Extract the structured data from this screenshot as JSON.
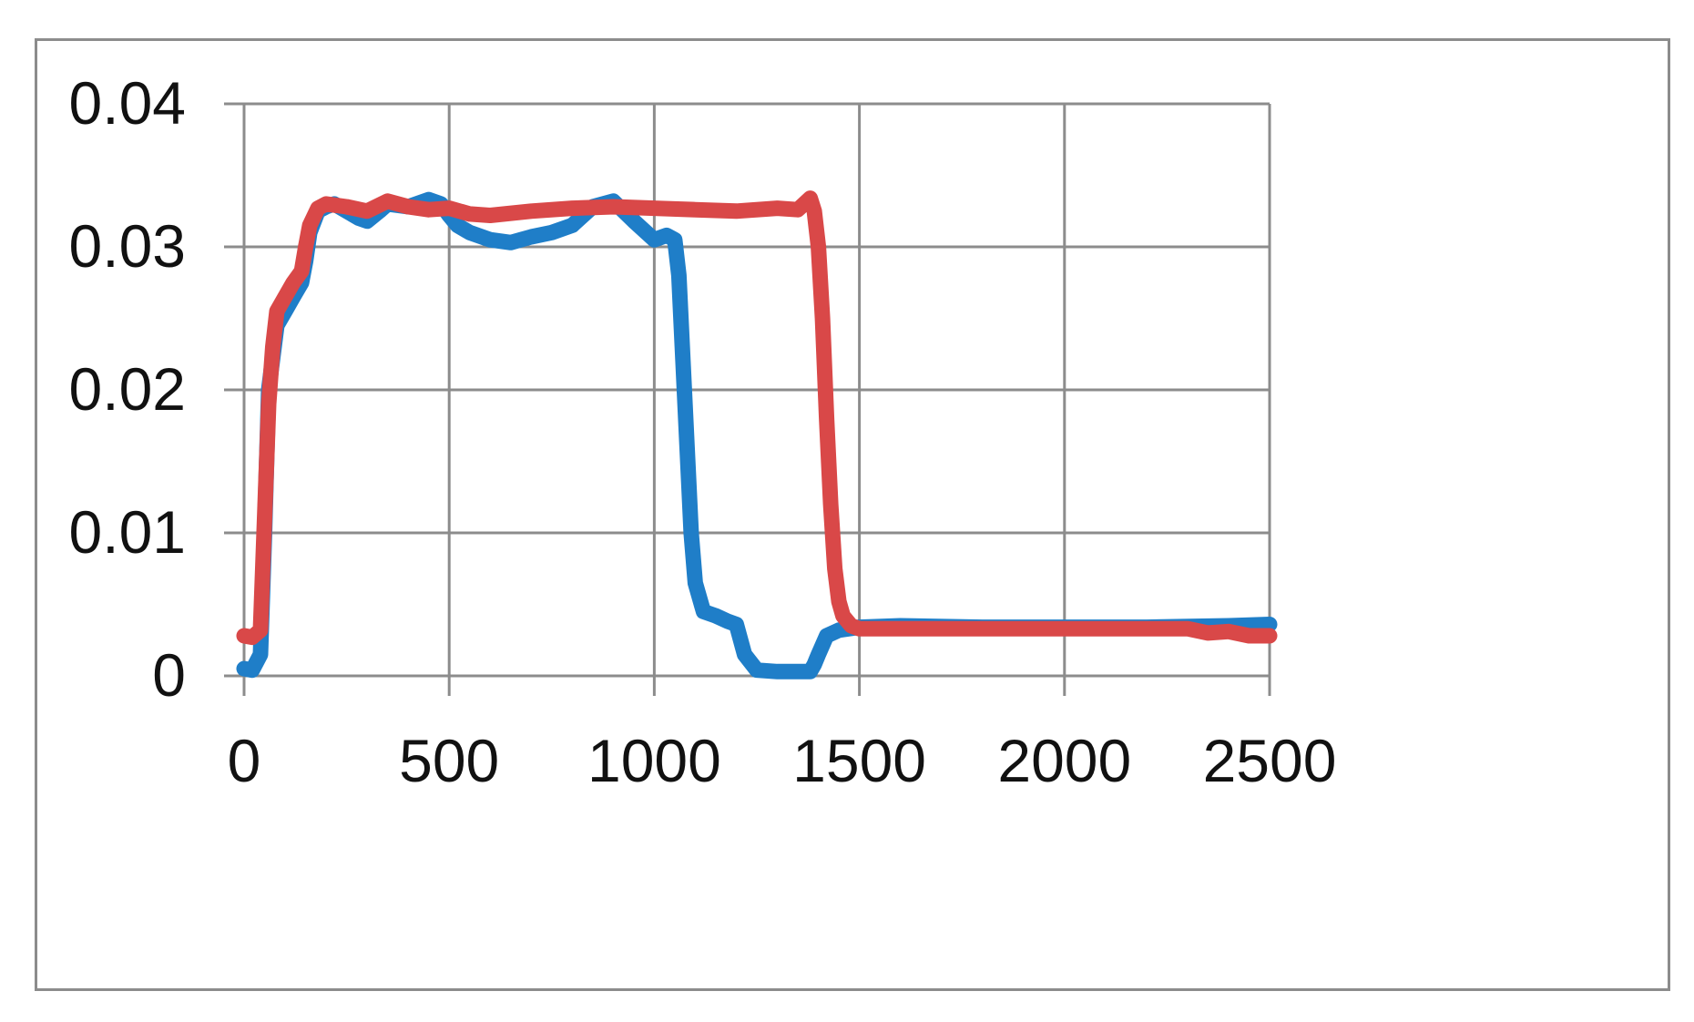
{
  "chart_data": {
    "type": "line",
    "title": "",
    "xlabel": "",
    "ylabel": "",
    "xlim": [
      0,
      2500
    ],
    "ylim": [
      0,
      0.04
    ],
    "x_ticks": [
      0,
      500,
      1000,
      1500,
      2000,
      2500
    ],
    "y_ticks": [
      0,
      0.01,
      0.02,
      0.03,
      0.04
    ],
    "x_tick_labels": [
      "0",
      "500",
      "1000",
      "1500",
      "2000",
      "2500"
    ],
    "y_tick_labels": [
      "0",
      "0.01",
      "0.02",
      "0.03",
      "0.04"
    ],
    "grid": true,
    "legend": "none",
    "series": [
      {
        "color": "#1f7ec8",
        "x": [
          0,
          20,
          40,
          50,
          60,
          80,
          100,
          120,
          140,
          150,
          160,
          180,
          200,
          220,
          250,
          280,
          300,
          330,
          350,
          400,
          450,
          480,
          500,
          520,
          550,
          600,
          650,
          700,
          750,
          800,
          850,
          900,
          950,
          1000,
          1030,
          1050,
          1060,
          1070,
          1080,
          1090,
          1100,
          1120,
          1150,
          1180,
          1200,
          1220,
          1250,
          1300,
          1350,
          1380,
          1390,
          1400,
          1420,
          1450,
          1500,
          1600,
          1800,
          2000,
          2200,
          2400,
          2500
        ],
        "y": [
          0.0005,
          0.0004,
          0.0015,
          0.01,
          0.02,
          0.0245,
          0.0255,
          0.0265,
          0.0275,
          0.029,
          0.031,
          0.0325,
          0.0328,
          0.033,
          0.0325,
          0.032,
          0.0318,
          0.0325,
          0.033,
          0.0328,
          0.0333,
          0.033,
          0.0322,
          0.0315,
          0.031,
          0.0305,
          0.0303,
          0.0307,
          0.031,
          0.0315,
          0.0328,
          0.0332,
          0.0318,
          0.0305,
          0.0308,
          0.0305,
          0.028,
          0.022,
          0.016,
          0.01,
          0.0065,
          0.0045,
          0.0042,
          0.0038,
          0.0036,
          0.0015,
          0.0004,
          0.0003,
          0.0003,
          0.0003,
          0.0008,
          0.0015,
          0.0028,
          0.0032,
          0.0034,
          0.0035,
          0.0034,
          0.0034,
          0.0034,
          0.0035,
          0.0036
        ]
      },
      {
        "color": "#d94848",
        "x": [
          0,
          20,
          40,
          50,
          60,
          70,
          80,
          100,
          120,
          140,
          150,
          160,
          180,
          200,
          250,
          300,
          350,
          400,
          450,
          500,
          550,
          600,
          700,
          800,
          900,
          1000,
          1100,
          1200,
          1300,
          1350,
          1380,
          1390,
          1400,
          1410,
          1420,
          1430,
          1440,
          1450,
          1460,
          1480,
          1500,
          1600,
          1800,
          2000,
          2200,
          2300,
          2350,
          2400,
          2450,
          2500
        ],
        "y": [
          0.0028,
          0.0027,
          0.0032,
          0.011,
          0.019,
          0.023,
          0.0255,
          0.0265,
          0.0275,
          0.0283,
          0.03,
          0.0315,
          0.0327,
          0.033,
          0.0328,
          0.0325,
          0.0332,
          0.0328,
          0.0326,
          0.0327,
          0.0323,
          0.0322,
          0.0325,
          0.0327,
          0.0328,
          0.0327,
          0.0326,
          0.0325,
          0.0327,
          0.0326,
          0.0334,
          0.0325,
          0.03,
          0.025,
          0.018,
          0.012,
          0.0075,
          0.0052,
          0.0042,
          0.0035,
          0.0033,
          0.0033,
          0.0033,
          0.0033,
          0.0033,
          0.0033,
          0.003,
          0.0031,
          0.0028,
          0.0028
        ]
      }
    ]
  }
}
